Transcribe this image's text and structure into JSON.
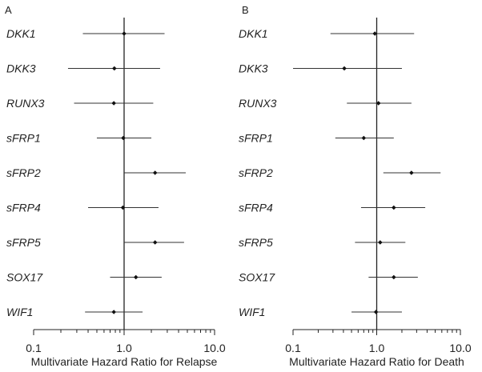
{
  "chart_data": [
    {
      "type": "forest",
      "panel": "A",
      "xlabel": "Multivariate Hazard Ratio for Relapse",
      "xscale": "log",
      "xlim": [
        0.1,
        10.0
      ],
      "xticks": [
        "0.1",
        "1.0",
        "10.0"
      ],
      "reference_line": 1.0,
      "rows": [
        {
          "label": "DKK1",
          "hr": 1.0,
          "lo": 0.35,
          "hi": 2.8
        },
        {
          "label": "DKK3",
          "hr": 0.78,
          "lo": 0.24,
          "hi": 2.5
        },
        {
          "label": "RUNX3",
          "hr": 0.77,
          "lo": 0.28,
          "hi": 2.1
        },
        {
          "label": "sFRP1",
          "hr": 0.98,
          "lo": 0.5,
          "hi": 2.0
        },
        {
          "label": "sFRP2",
          "hr": 2.2,
          "lo": 1.0,
          "hi": 4.8
        },
        {
          "label": "sFRP4",
          "hr": 0.97,
          "lo": 0.4,
          "hi": 2.4
        },
        {
          "label": "sFRP5",
          "hr": 2.2,
          "lo": 1.0,
          "hi": 4.6
        },
        {
          "label": "SOX17",
          "hr": 1.35,
          "lo": 0.7,
          "hi": 2.6
        },
        {
          "label": "WIF1",
          "hr": 0.77,
          "lo": 0.37,
          "hi": 1.6
        }
      ]
    },
    {
      "type": "forest",
      "panel": "B",
      "xlabel": "Multivariate Hazard Ratio for Death",
      "xscale": "log",
      "xlim": [
        0.1,
        10.0
      ],
      "xticks": [
        "0.1",
        "1.0",
        "10.0"
      ],
      "reference_line": 1.0,
      "rows": [
        {
          "label": "DKK1",
          "hr": 0.95,
          "lo": 0.28,
          "hi": 2.8
        },
        {
          "label": "DKK3",
          "hr": 0.41,
          "lo": 0.1,
          "hi": 2.0
        },
        {
          "label": "RUNX3",
          "hr": 1.05,
          "lo": 0.44,
          "hi": 2.6
        },
        {
          "label": "sFRP1",
          "hr": 0.7,
          "lo": 0.32,
          "hi": 1.6
        },
        {
          "label": "sFRP2",
          "hr": 2.6,
          "lo": 1.2,
          "hi": 5.8
        },
        {
          "label": "sFRP4",
          "hr": 1.6,
          "lo": 0.65,
          "hi": 3.8
        },
        {
          "label": "sFRP5",
          "hr": 1.1,
          "lo": 0.55,
          "hi": 2.2
        },
        {
          "label": "SOX17",
          "hr": 1.6,
          "lo": 0.8,
          "hi": 3.1
        },
        {
          "label": "WIF1",
          "hr": 0.98,
          "lo": 0.5,
          "hi": 2.0
        }
      ]
    }
  ]
}
